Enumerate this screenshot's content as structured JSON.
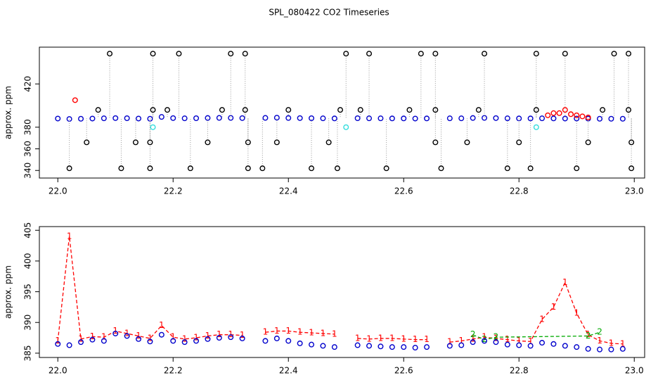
{
  "chart_data": [
    {
      "type": "scatter",
      "title": "SPL_080422  CO2 Timeseries",
      "ylabel": "approx. ppm",
      "xlim": [
        21.968,
        23.018
      ],
      "ylim": [
        333,
        454
      ],
      "xticks": [
        {
          "value": 22,
          "label": "22.0"
        },
        22.2,
        22.4,
        22.6,
        22.8,
        {
          "value": 23,
          "label": "23.0"
        }
      ],
      "yticks": [
        340,
        360,
        380,
        420
      ],
      "series": [
        {
          "color": "#0000cc",
          "marker": "circle",
          "x": [
            22.0,
            22.02,
            22.04,
            22.06,
            22.08,
            22.1,
            22.12,
            22.14,
            22.16,
            22.18,
            22.2,
            22.22,
            22.24,
            22.26,
            22.28,
            22.3,
            22.32,
            22.34,
            22.36,
            22.38,
            22.4,
            22.42,
            22.44,
            22.46,
            22.48,
            22.5,
            22.52,
            22.54,
            22.56,
            22.58,
            22.6,
            22.62,
            22.64,
            22.66,
            22.68,
            22.7,
            22.72,
            22.74,
            22.76,
            22.78,
            22.8,
            22.82,
            22.84,
            22.86,
            22.88,
            22.9,
            22.92,
            22.94,
            22.96,
            22.98
          ],
          "values": [
            388,
            387.6,
            387.8,
            388,
            388.2,
            388.4,
            388.3,
            388,
            387.8,
            389.5,
            388.4,
            388.2,
            388.3,
            388.5,
            388.6,
            388.6,
            388.4,
            null,
            388.6,
            388.8,
            388.5,
            388.4,
            388.3,
            388.2,
            388.1,
            null,
            388.3,
            388.2,
            388.2,
            388.1,
            388.1,
            388,
            388.1,
            null,
            388.2,
            388.2,
            388.5,
            388.6,
            388.4,
            388.2,
            388.1,
            388.1,
            388.2,
            388.1,
            388,
            388,
            387.9,
            387.8,
            387.8,
            387.8
          ]
        },
        {
          "color": "#000000",
          "marker": "circle",
          "drops": true,
          "x": [
            22.09,
            22.165,
            22.21,
            22.3,
            22.325,
            22.5,
            22.54,
            22.63,
            22.655,
            22.74,
            22.83,
            22.88,
            22.965,
            22.99,
            22.02,
            22.11,
            22.16,
            22.23,
            22.33,
            22.355,
            22.44,
            22.485,
            22.57,
            22.665,
            22.78,
            22.82,
            22.9,
            22.995,
            22.05,
            22.135,
            22.16,
            22.26,
            22.33,
            22.38,
            22.47,
            22.655,
            22.71,
            22.8,
            22.92,
            22.995,
            22.07,
            22.165,
            22.19,
            22.285,
            22.325,
            22.4,
            22.49,
            22.525,
            22.61,
            22.655,
            22.73,
            22.83,
            22.945,
            22.99
          ],
          "values": [
            448,
            448,
            448,
            448,
            448,
            448,
            448,
            448,
            448,
            448,
            448,
            448,
            448,
            448,
            342,
            342,
            342,
            342,
            342,
            342,
            342,
            342,
            342,
            342,
            342,
            342,
            342,
            342,
            366,
            366,
            366,
            366,
            366,
            366,
            366,
            366,
            366,
            366,
            366,
            366,
            396,
            396,
            396,
            396,
            396,
            396,
            396,
            396,
            396,
            396,
            396,
            396,
            396,
            396
          ]
        },
        {
          "color": "#ff0000",
          "marker": "circle",
          "x": [
            22.03,
            22.85,
            22.86,
            22.87,
            22.88,
            22.89,
            22.9,
            22.91,
            22.92
          ],
          "values": [
            405,
            391,
            393,
            393,
            396,
            392,
            391,
            390,
            389
          ]
        },
        {
          "color": "#33dddd",
          "marker": "circle",
          "x": [
            22.165,
            22.5,
            22.83
          ],
          "values": [
            380,
            380,
            380
          ]
        }
      ]
    },
    {
      "type": "line",
      "ylabel": "approx. ppm",
      "xlim": [
        21.968,
        23.018
      ],
      "ylim": [
        384.3,
        405.6
      ],
      "xticks": [
        {
          "value": 22,
          "label": "22.0"
        },
        22.2,
        22.4,
        22.6,
        22.8,
        {
          "value": 23,
          "label": "23.0"
        }
      ],
      "yticks": [
        385,
        390,
        395,
        400,
        405
      ],
      "series": [
        {
          "color": "#ff0000",
          "marker_label": "1",
          "x": [
            22.0,
            22.02,
            22.04,
            22.06,
            22.08,
            22.1,
            22.12,
            22.14,
            22.16,
            22.18,
            22.2,
            22.22,
            22.24,
            22.26,
            22.28,
            22.3,
            22.32,
            22.34,
            22.36,
            22.38,
            22.4,
            22.42,
            22.44,
            22.46,
            22.48,
            22.5,
            22.52,
            22.54,
            22.56,
            22.58,
            22.6,
            22.62,
            22.64,
            22.66,
            22.68,
            22.7,
            22.72,
            22.74,
            22.76,
            22.78,
            22.8,
            22.82,
            22.84,
            22.86,
            22.88,
            22.9,
            22.92,
            22.94,
            22.96,
            22.98
          ],
          "values": [
            387,
            404,
            387.3,
            387.7,
            387.6,
            388.6,
            388.2,
            387.8,
            387.4,
            389.5,
            387.6,
            387.3,
            387.5,
            387.8,
            388,
            388,
            387.9,
            null,
            388.4,
            388.6,
            388.6,
            388.4,
            388.3,
            388.2,
            388.1,
            null,
            387.4,
            387.3,
            387.4,
            387.4,
            387.3,
            387.2,
            387.2,
            null,
            386.8,
            387,
            387.3,
            387.6,
            387.4,
            387.2,
            387,
            386.9,
            390.5,
            392.5,
            396.5,
            391.5,
            388,
            387,
            386.6,
            386.5
          ]
        },
        {
          "color": "#00aa00",
          "marker_label": "2",
          "x": [
            22.72,
            22.74,
            22.76,
            22.92,
            22.94
          ],
          "values": [
            388,
            387.2,
            387.6,
            387.8,
            388.4
          ]
        },
        {
          "color": "#0000cc",
          "marker": "circle",
          "x": [
            22.0,
            22.02,
            22.04,
            22.06,
            22.08,
            22.1,
            22.12,
            22.14,
            22.16,
            22.18,
            22.2,
            22.22,
            22.24,
            22.26,
            22.28,
            22.3,
            22.32,
            22.34,
            22.36,
            22.38,
            22.4,
            22.42,
            22.44,
            22.46,
            22.48,
            22.5,
            22.52,
            22.54,
            22.56,
            22.58,
            22.6,
            22.62,
            22.64,
            22.66,
            22.68,
            22.7,
            22.72,
            22.74,
            22.76,
            22.78,
            22.8,
            22.82,
            22.84,
            22.86,
            22.88,
            22.9,
            22.92,
            22.94,
            22.96,
            22.98
          ],
          "values": [
            386.5,
            386.3,
            386.8,
            387.2,
            387,
            388.2,
            387.8,
            387.3,
            386.9,
            388,
            387,
            386.8,
            387,
            387.3,
            387.5,
            387.6,
            387.4,
            null,
            387,
            387.4,
            387,
            386.6,
            386.4,
            386.2,
            386,
            null,
            386.3,
            386.2,
            386.1,
            386,
            386,
            385.9,
            386,
            null,
            386.2,
            386.3,
            386.8,
            387,
            386.8,
            386.4,
            386.3,
            386.2,
            386.7,
            386.5,
            386.2,
            386,
            385.7,
            385.6,
            385.6,
            385.7
          ]
        }
      ]
    }
  ]
}
